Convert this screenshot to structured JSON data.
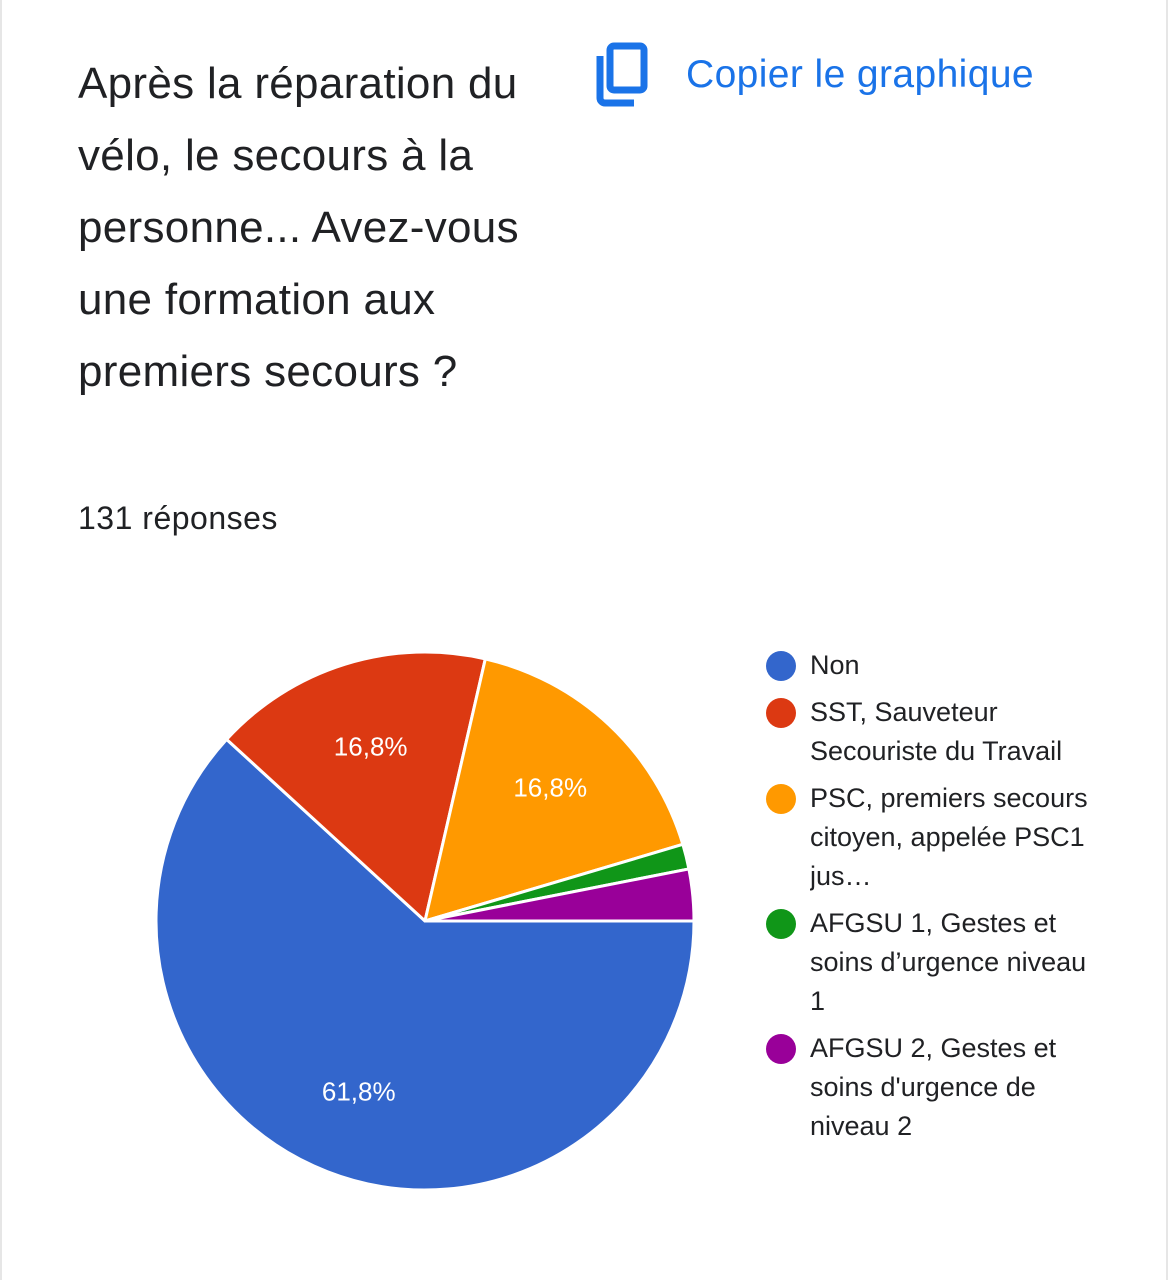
{
  "question": {
    "title": "Après la réparation du vélo, le secours à la personne... Avez-vous une formation aux premiers secours ?",
    "response_count": "131 réponses"
  },
  "toolbar": {
    "copy_label": "Copier le graphique",
    "copy_icon": "copy-icon"
  },
  "colors": {
    "accent": "#1a73e8",
    "text": "#202124"
  },
  "chart_data": {
    "type": "pie",
    "total_responses": 131,
    "slices": [
      {
        "name": "Non",
        "value": 61.8,
        "label": "61,8%",
        "color": "#3366cc"
      },
      {
        "name": "SST, Sauveteur Secouriste du Travail",
        "value": 16.8,
        "label": "16,8%",
        "color": "#dc3912"
      },
      {
        "name": "PSC, premiers secours citoyen, appelée PSC1 jus…",
        "value": 16.8,
        "label": "16,8%",
        "color": "#ff9900"
      },
      {
        "name": "AFGSU 1, Gestes et soins d’urgence niveau 1",
        "value": 1.5,
        "label": "",
        "color": "#109618"
      },
      {
        "name": "AFGSU 2, Gestes et soins d'urgence de niveau 2",
        "value": 3.1,
        "label": "",
        "color": "#990099"
      }
    ],
    "legend_position": "right"
  }
}
